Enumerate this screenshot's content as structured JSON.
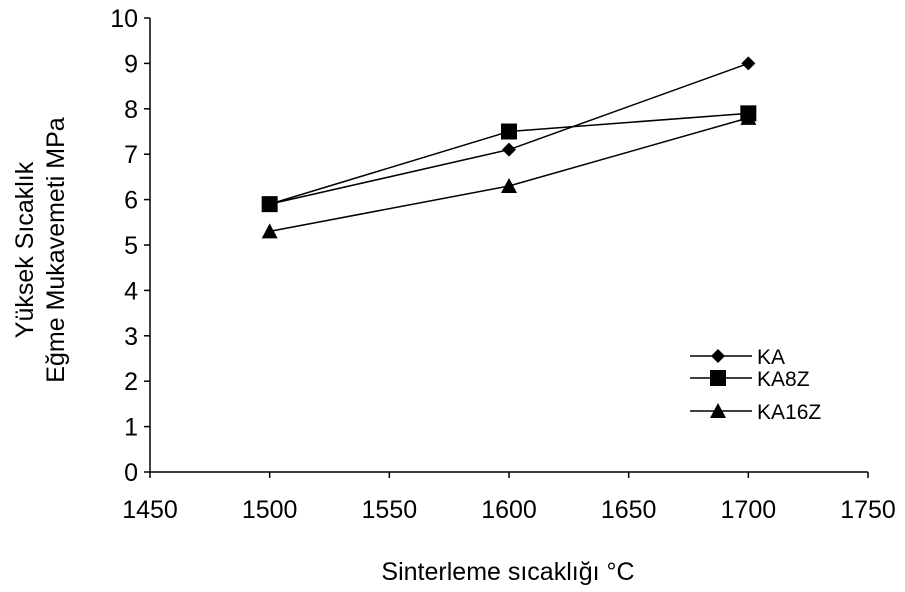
{
  "chart_data": {
    "type": "line",
    "title": "",
    "xlabel": "Sinterleme sıcaklığı °C",
    "ylabel_lines": [
      "Yüksek Sıcaklık",
      "Eğme Mukavemeti MPa"
    ],
    "x": [
      1500,
      1600,
      1700
    ],
    "xlim": [
      1450,
      1750
    ],
    "ylim": [
      0,
      10
    ],
    "xticks": [
      1450,
      1500,
      1550,
      1600,
      1650,
      1700,
      1750
    ],
    "yticks": [
      0,
      1,
      2,
      3,
      4,
      5,
      6,
      7,
      8,
      9,
      10
    ],
    "grid": false,
    "legend_position": "right",
    "series": [
      {
        "name": "KA",
        "marker": "diamond",
        "values": [
          5.9,
          7.1,
          9.0
        ]
      },
      {
        "name": "KA8Z",
        "marker": "square",
        "values": [
          5.9,
          7.5,
          7.9
        ]
      },
      {
        "name": "KA16Z",
        "marker": "triangle",
        "values": [
          5.3,
          6.3,
          7.8
        ]
      }
    ],
    "colors": {
      "line": "#000000",
      "marker": "#000000",
      "axis": "#000000"
    }
  }
}
